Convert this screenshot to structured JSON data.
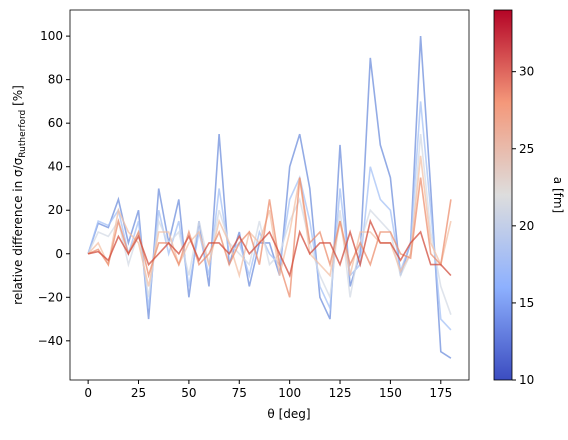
{
  "chart_data": {
    "type": "line",
    "xlabel": "θ [deg]",
    "ylabel": {
      "main": "relative difference in σ/σ",
      "sub": "Rutherford",
      "end": " [%]"
    },
    "x": [
      0,
      5,
      10,
      15,
      20,
      25,
      30,
      35,
      40,
      45,
      50,
      55,
      60,
      65,
      70,
      75,
      80,
      85,
      90,
      95,
      100,
      105,
      110,
      115,
      120,
      125,
      130,
      135,
      140,
      145,
      150,
      155,
      160,
      165,
      170,
      175,
      180
    ],
    "series": [
      {
        "color": "#6f8fdc",
        "values": [
          0,
          14,
          12,
          25,
          5,
          20,
          -30,
          30,
          5,
          25,
          -20,
          15,
          -15,
          55,
          -5,
          10,
          -15,
          5,
          5,
          -10,
          40,
          55,
          30,
          -20,
          -30,
          50,
          -15,
          0,
          90,
          50,
          35,
          -10,
          5,
          100,
          30,
          -45,
          -48
        ]
      },
      {
        "color": "#a6c1f5",
        "values": [
          0,
          15,
          13,
          20,
          0,
          15,
          -25,
          20,
          0,
          15,
          -15,
          10,
          -10,
          30,
          0,
          5,
          -10,
          10,
          0,
          -5,
          25,
          35,
          15,
          -15,
          -25,
          30,
          -10,
          -5,
          40,
          25,
          20,
          -8,
          5,
          70,
          20,
          -30,
          -35
        ]
      },
      {
        "color": "#d4dbe6",
        "values": [
          0,
          10,
          8,
          15,
          -5,
          10,
          -20,
          15,
          5,
          10,
          -10,
          15,
          -5,
          20,
          5,
          0,
          -5,
          15,
          -5,
          0,
          15,
          25,
          5,
          -10,
          -20,
          20,
          -20,
          5,
          20,
          15,
          10,
          -10,
          0,
          55,
          10,
          -15,
          -28
        ]
      },
      {
        "color": "#f3c1a7",
        "values": [
          0,
          5,
          -5,
          20,
          10,
          5,
          -15,
          10,
          10,
          -5,
          5,
          10,
          -5,
          15,
          5,
          -10,
          10,
          5,
          20,
          -10,
          10,
          35,
          0,
          -5,
          -10,
          15,
          -10,
          10,
          10,
          5,
          5,
          -8,
          0,
          45,
          5,
          -5,
          15
        ]
      },
      {
        "color": "#ec8f6f",
        "values": [
          0,
          2,
          -5,
          15,
          0,
          10,
          -10,
          5,
          5,
          -5,
          10,
          -5,
          0,
          10,
          -5,
          5,
          10,
          -5,
          25,
          -5,
          -20,
          35,
          5,
          10,
          -5,
          15,
          -5,
          5,
          -5,
          10,
          10,
          0,
          -2,
          35,
          0,
          -5,
          25
        ]
      },
      {
        "color": "#d24d3e",
        "values": [
          0,
          1,
          -3,
          8,
          0,
          8,
          -5,
          0,
          5,
          0,
          8,
          -3,
          5,
          5,
          0,
          8,
          0,
          5,
          10,
          0,
          -10,
          10,
          0,
          5,
          5,
          -5,
          10,
          -5,
          15,
          5,
          5,
          -3,
          5,
          10,
          -5,
          -5,
          -10
        ]
      }
    ],
    "xlim": [
      -9,
      189
    ],
    "ylim": [
      -58,
      112
    ],
    "xticks": [
      0,
      25,
      50,
      75,
      100,
      125,
      150,
      175
    ],
    "yticks": [
      {
        "value": -40,
        "label": "−40"
      },
      {
        "value": -20,
        "label": "−20"
      },
      0,
      20,
      40,
      60,
      80,
      100
    ],
    "colorbar": {
      "label": "a [fm]",
      "lim": [
        10,
        34
      ],
      "ticks": [
        10,
        15,
        20,
        25,
        30
      ]
    }
  }
}
